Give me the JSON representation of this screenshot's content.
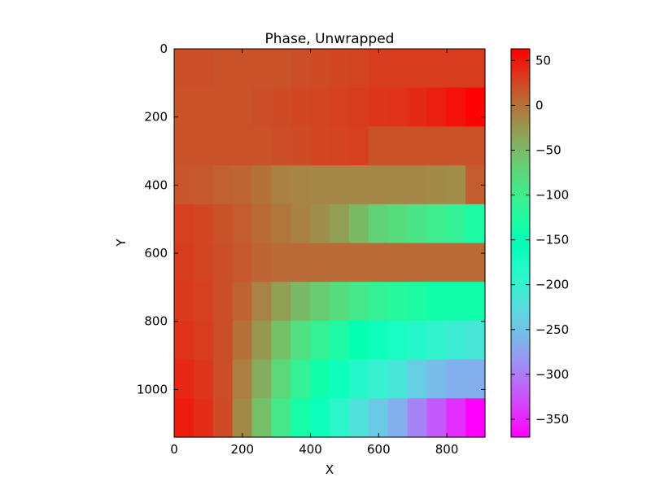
{
  "chart_data": {
    "type": "heatmap",
    "title": "Phase, Unwrapped",
    "xlabel": "X",
    "ylabel": "Y",
    "xlim": [
      0,
      912
    ],
    "ylim": [
      1140,
      0
    ],
    "y_inverted": true,
    "grid": false,
    "colormap": "rainbow",
    "x_ticks": [
      0,
      200,
      400,
      600,
      800
    ],
    "y_ticks": [
      0,
      200,
      400,
      600,
      800,
      1000
    ],
    "colorbar": {
      "range": [
        -370,
        63
      ],
      "ticks": [
        50,
        0,
        -50,
        -100,
        -150,
        -200,
        -250,
        -300,
        -350
      ],
      "tick_labels": [
        "50",
        "0",
        "−50",
        "−100",
        "−150",
        "−200",
        "−250",
        "−300",
        "−350"
      ]
    },
    "grid_shape": [
      10,
      16
    ],
    "values": [
      [
        20,
        20,
        18,
        18,
        18,
        18,
        20,
        22,
        24,
        26,
        30,
        30,
        30,
        30,
        30,
        30
      ],
      [
        18,
        18,
        18,
        18,
        20,
        22,
        24,
        26,
        28,
        30,
        34,
        36,
        40,
        46,
        54,
        62
      ],
      [
        18,
        18,
        18,
        18,
        18,
        20,
        22,
        24,
        26,
        28,
        18,
        18,
        18,
        18,
        18,
        18
      ],
      [
        16,
        14,
        10,
        6,
        0,
        -10,
        -12,
        -14,
        -14,
        -14,
        -14,
        -14,
        -14,
        -16,
        -18,
        12
      ],
      [
        28,
        24,
        18,
        12,
        4,
        -4,
        -10,
        -20,
        -30,
        -50,
        -70,
        -80,
        -90,
        -100,
        -110,
        -130
      ],
      [
        30,
        26,
        20,
        14,
        8,
        4,
        4,
        4,
        4,
        4,
        4,
        4,
        4,
        4,
        4,
        4
      ],
      [
        32,
        28,
        20,
        8,
        -12,
        -30,
        -50,
        -65,
        -80,
        -95,
        -110,
        -120,
        -130,
        -140,
        -140,
        -140
      ],
      [
        36,
        30,
        20,
        0,
        -25,
        -55,
        -85,
        -110,
        -130,
        -150,
        -165,
        -175,
        -185,
        -195,
        -205,
        -215
      ],
      [
        42,
        34,
        20,
        -8,
        -40,
        -75,
        -110,
        -140,
        -165,
        -185,
        -200,
        -215,
        -240,
        -255,
        -265,
        -265
      ],
      [
        48,
        38,
        22,
        -15,
        -55,
        -95,
        -135,
        -165,
        -190,
        -220,
        -245,
        -265,
        -295,
        -320,
        -345,
        -370
      ]
    ]
  }
}
